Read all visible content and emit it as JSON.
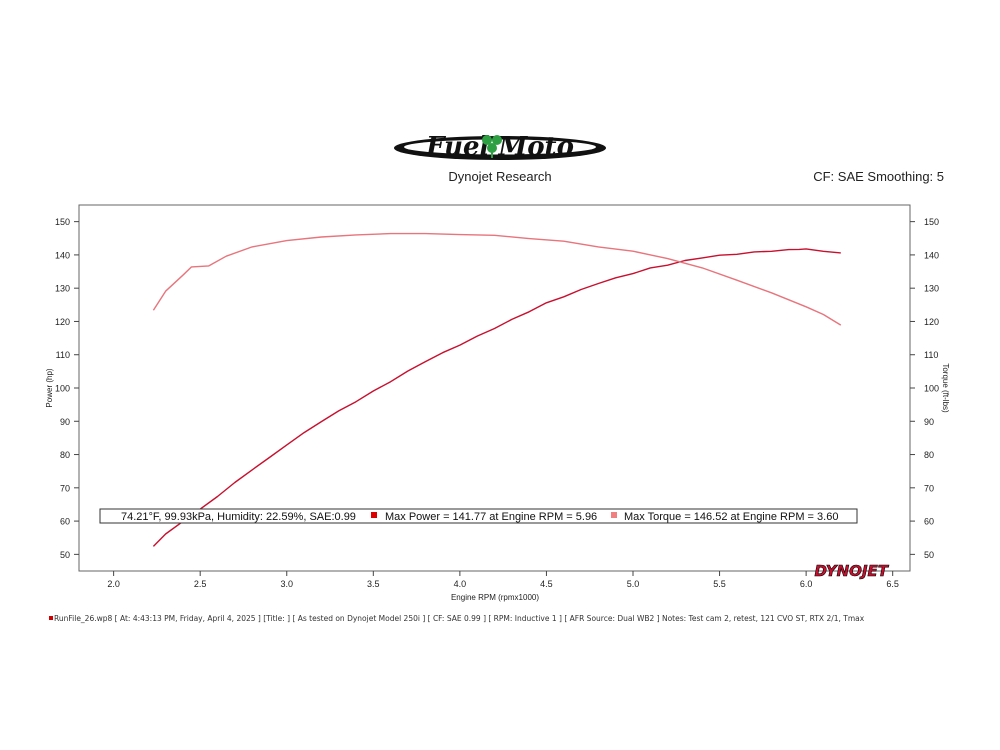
{
  "header": {
    "logo_text": "Fuel Moto",
    "subtitle": "Dynojet Research",
    "cf_label": "CF: SAE Smoothing: 5"
  },
  "chart_data": {
    "type": "line",
    "xlabel": "Engine RPM (rpmx1000)",
    "ylabel_left": "Power (hp)",
    "ylabel_right": "Torque (ft-lbs)",
    "xlim": [
      1.8,
      6.6
    ],
    "ylim": [
      45,
      155
    ],
    "xticks": [
      "2.0",
      "2.5",
      "3.0",
      "3.5",
      "4.0",
      "4.5",
      "5.0",
      "5.5",
      "6.0",
      "6.5"
    ],
    "yticks": [
      "50",
      "60",
      "70",
      "80",
      "90",
      "100",
      "110",
      "120",
      "130",
      "140",
      "150"
    ],
    "grid": false,
    "series": [
      {
        "name": "Power",
        "color": "#c8102e",
        "x": [
          2.23,
          2.3,
          2.4,
          2.5,
          2.6,
          2.7,
          2.8,
          2.9,
          3.0,
          3.1,
          3.2,
          3.3,
          3.4,
          3.5,
          3.6,
          3.7,
          3.8,
          3.9,
          4.0,
          4.1,
          4.2,
          4.3,
          4.4,
          4.5,
          4.6,
          4.7,
          4.8,
          4.9,
          5.0,
          5.1,
          5.2,
          5.3,
          5.4,
          5.5,
          5.6,
          5.7,
          5.8,
          5.9,
          5.96,
          6.0,
          6.1,
          6.2
        ],
        "values": [
          52.5,
          56,
          60,
          63.5,
          67.5,
          71.5,
          75.5,
          79,
          83,
          86.5,
          90,
          93,
          96,
          99,
          102,
          105,
          108,
          110.5,
          113,
          115.5,
          118,
          120.5,
          123,
          125.5,
          127.5,
          129.5,
          131.5,
          133,
          134.5,
          136,
          137,
          138.2,
          139.2,
          139.8,
          140.3,
          140.8,
          141.2,
          141.5,
          141.77,
          141.7,
          141.2,
          140.5
        ]
      },
      {
        "name": "Torque",
        "color": "#e8747c",
        "x": [
          2.23,
          2.3,
          2.4,
          2.45,
          2.55,
          2.65,
          2.8,
          3.0,
          3.2,
          3.4,
          3.6,
          3.8,
          4.0,
          4.2,
          4.4,
          4.6,
          4.8,
          5.0,
          5.2,
          5.4,
          5.6,
          5.8,
          6.0,
          6.1,
          6.2
        ],
        "values": [
          123.5,
          129,
          134,
          136.3,
          136.8,
          139.5,
          142.5,
          144.2,
          145.5,
          145.9,
          146.52,
          146.3,
          146.2,
          145.8,
          145.0,
          144.0,
          142.5,
          141.0,
          139.0,
          136.0,
          132.5,
          128.5,
          124.5,
          122,
          119
        ]
      }
    ],
    "legend": {
      "conditions": "74.21°F, 99.93kPa, Humidity: 22.59%, SAE:0.99",
      "max_power": "Max Power = 141.77 at Engine RPM = 5.96",
      "max_torque": "Max Torque = 146.52 at Engine RPM = 3.60",
      "power_color": "#dd0000",
      "torque_color": "#f08080"
    },
    "watermark": "DYNOJET"
  },
  "footer": {
    "text": "RunFile_26.wp8 [ At: 4:43:13 PM, Friday, April 4, 2025 ] [Title: ]   [ As tested on Dynojet Model 250i ] [ CF: SAE 0.99 ] [ RPM: Inductive 1 ] [ AFR Source: Dual WB2 ] Notes: Test cam 2, retest, 121 CVO ST, RTX 2/1, Tmax"
  }
}
